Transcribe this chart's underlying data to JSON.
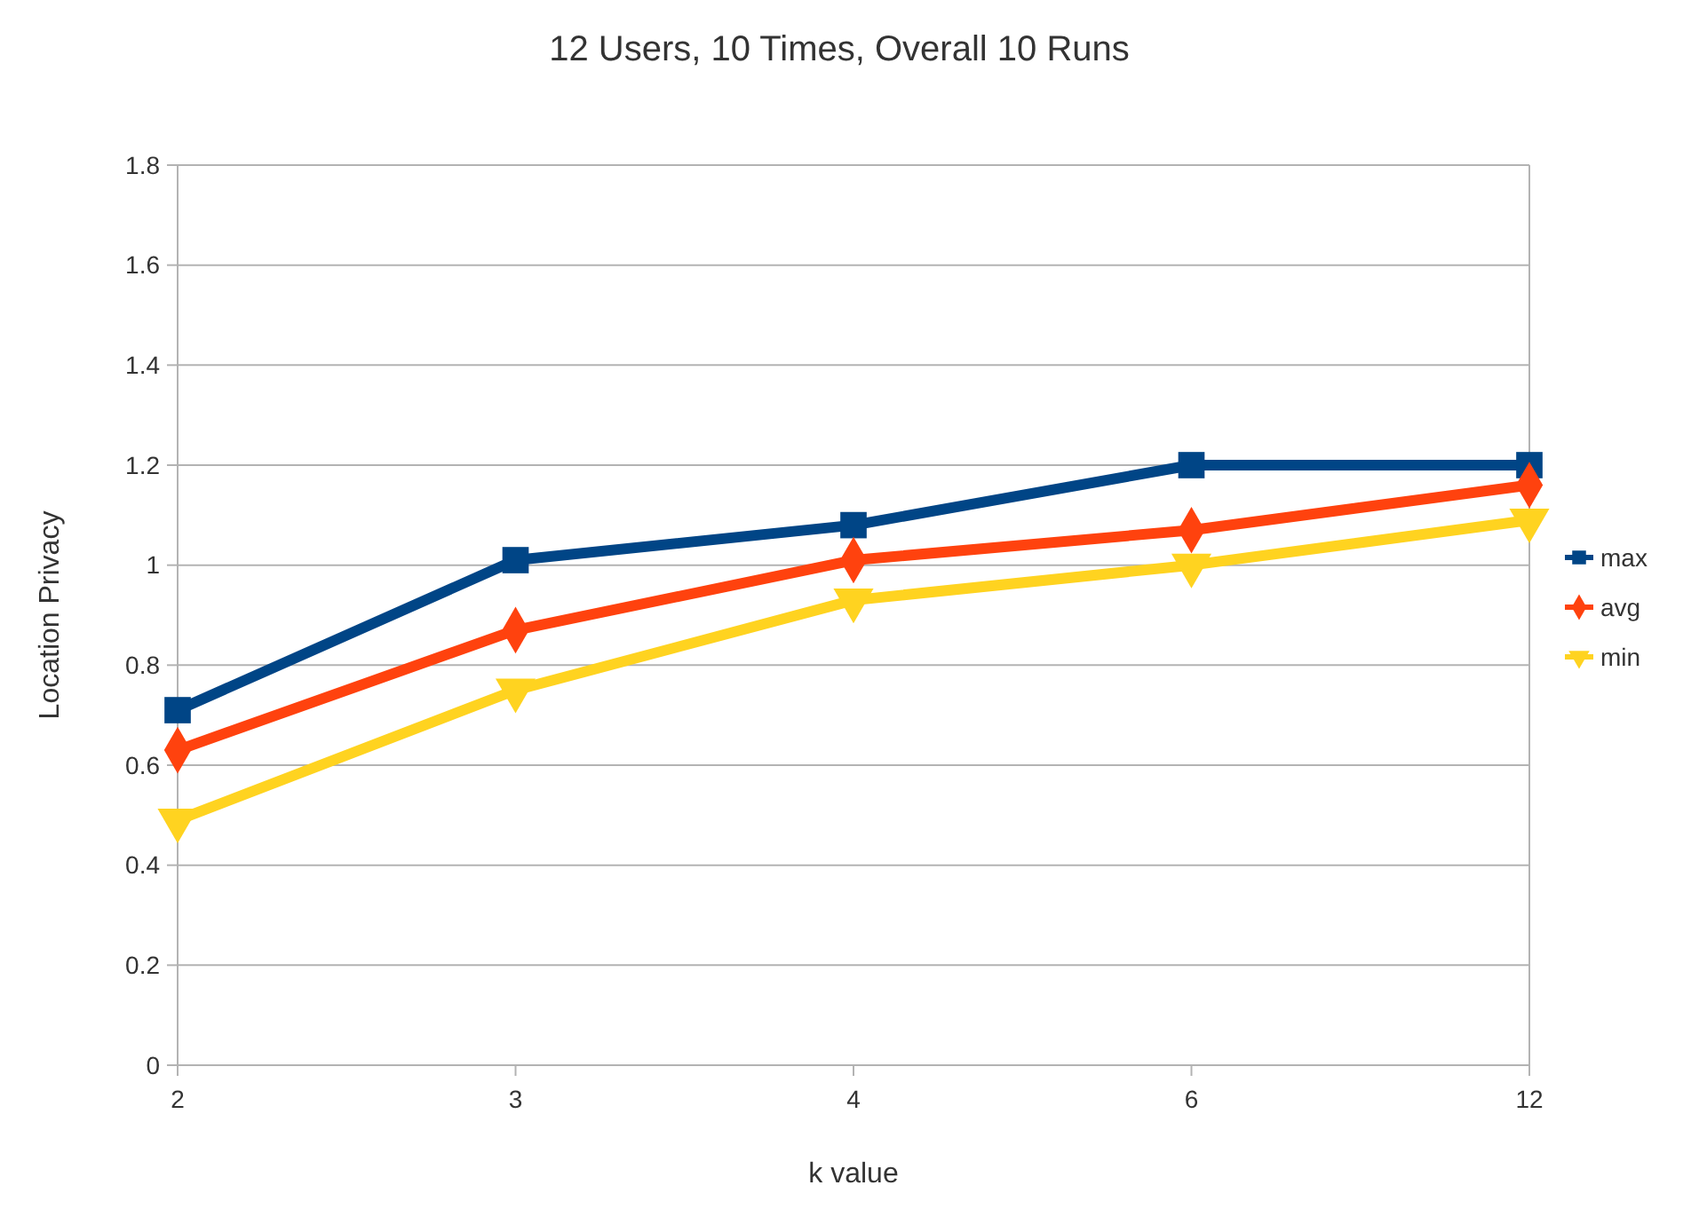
{
  "chart_data": {
    "type": "line",
    "title": "12 Users, 10 Times, Overall 10 Runs",
    "xlabel": "k value",
    "ylabel": "Location Privacy",
    "categories": [
      "2",
      "3",
      "4",
      "6",
      "12"
    ],
    "ylim": [
      0,
      1.8
    ],
    "yticks": [
      0,
      0.2,
      0.4,
      0.6,
      0.8,
      1,
      1.2,
      1.4,
      1.6,
      1.8
    ],
    "grid": "y",
    "legend": "right",
    "series": [
      {
        "name": "max",
        "color": "#004586",
        "marker": "square",
        "values": [
          0.71,
          1.01,
          1.08,
          1.2,
          1.2
        ]
      },
      {
        "name": "avg",
        "color": "#ff420e",
        "marker": "diamond",
        "values": [
          0.63,
          0.87,
          1.01,
          1.07,
          1.16
        ]
      },
      {
        "name": "min",
        "color": "#ffd320",
        "marker": "triangle",
        "values": [
          0.49,
          0.75,
          0.93,
          1.0,
          1.09
        ]
      }
    ]
  }
}
